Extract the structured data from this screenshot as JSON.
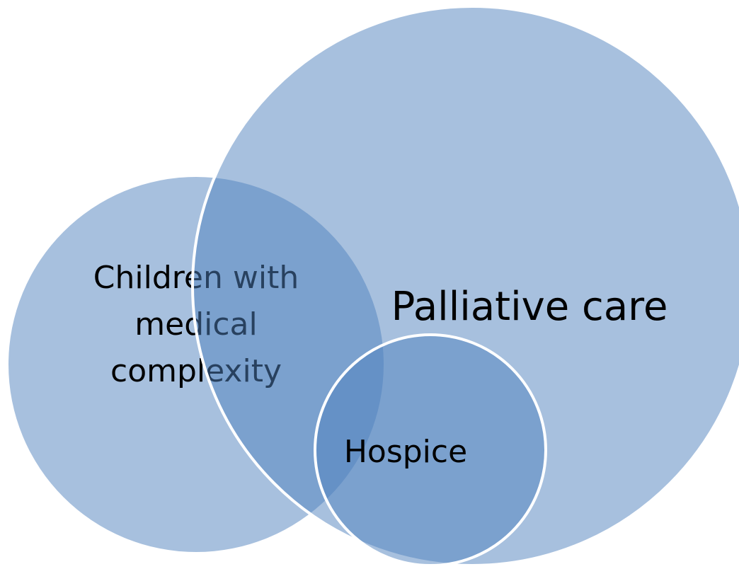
{
  "nodes": [
    {
      "label_lines": [
        "Children with",
        "medical",
        "complexity"
      ]
    },
    {
      "label": "Palliative care"
    },
    {
      "label": "Hospice"
    }
  ]
}
